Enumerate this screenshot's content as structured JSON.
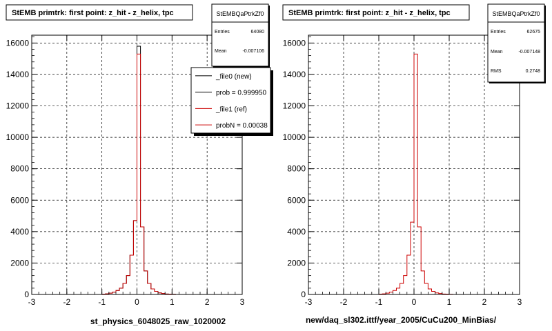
{
  "chart_data": [
    {
      "type": "histogram",
      "title": "StEMB primtrk: first point: z_hit - z_helix, tpc",
      "xlabel": "st_physics_6048025_raw_1020002",
      "xlim": [
        -3,
        3
      ],
      "ylim": [
        0,
        16500
      ],
      "xticks": [
        "-3",
        "-2",
        "-1",
        "0",
        "1",
        "2",
        "3"
      ],
      "yticks": [
        "0",
        "2000",
        "4000",
        "6000",
        "8000",
        "10000",
        "12000",
        "14000",
        "16000"
      ],
      "grid": true,
      "stats": {
        "name": "StEMBQaPtrkZf0",
        "entries_label": "Entries",
        "entries": "64080",
        "mean_label": "Mean",
        "mean": "-0.007106"
      },
      "legend": {
        "position": "top-right",
        "entries": [
          "_file0 (new)",
          "prob = 0.999950",
          "_file1 (ref)",
          "probN = 0.00038"
        ]
      },
      "bin_edges": [
        -3.0,
        -2.9,
        -2.8,
        -2.7,
        -2.6,
        -2.5,
        -2.4,
        -2.3,
        -2.2,
        -2.1,
        -2.0,
        -1.9,
        -1.8,
        -1.7,
        -1.6,
        -1.5,
        -1.4,
        -1.3,
        -1.2,
        -1.1,
        -1.0,
        -0.9,
        -0.8,
        -0.7,
        -0.6,
        -0.5,
        -0.4,
        -0.3,
        -0.2,
        -0.1,
        0.0,
        0.1,
        0.2,
        0.3,
        0.4,
        0.5,
        0.6,
        0.7,
        0.8,
        0.9,
        1.0,
        1.1,
        1.2,
        1.3,
        1.4,
        1.5,
        1.6,
        1.7,
        1.8,
        1.9,
        2.0,
        2.1,
        2.2,
        2.3,
        2.4,
        2.5,
        2.6,
        2.7,
        2.8,
        2.9,
        3.0
      ],
      "series": [
        {
          "color": "#000000",
          "values": [
            0,
            0,
            0,
            0,
            0,
            0,
            0,
            0,
            0,
            0,
            0,
            0,
            0,
            0,
            0,
            0,
            0,
            0,
            0,
            0,
            20,
            40,
            80,
            150,
            250,
            400,
            700,
            1200,
            2500,
            4700,
            15800,
            4300,
            1500,
            700,
            350,
            200,
            100,
            60,
            30,
            20,
            10,
            0,
            0,
            0,
            0,
            0,
            0,
            0,
            0,
            0,
            0,
            0,
            0,
            0,
            0,
            0,
            0,
            0,
            0,
            0
          ]
        },
        {
          "color": "#cc0000",
          "values": [
            0,
            0,
            0,
            0,
            0,
            0,
            0,
            0,
            0,
            0,
            0,
            0,
            0,
            0,
            0,
            0,
            0,
            0,
            0,
            0,
            20,
            40,
            80,
            150,
            250,
            400,
            700,
            1200,
            2500,
            4700,
            15300,
            4300,
            1500,
            700,
            350,
            200,
            100,
            60,
            30,
            20,
            10,
            0,
            0,
            0,
            0,
            0,
            0,
            0,
            0,
            0,
            0,
            0,
            0,
            0,
            0,
            0,
            0,
            0,
            0,
            0
          ]
        }
      ]
    },
    {
      "type": "histogram",
      "title": "StEMB primtrk: first point: z_hit - z_helix, tpc",
      "xlabel": "new/daq_sl302.ittf/year_2005/CuCu200_MinBias/",
      "xlim": [
        -3,
        3
      ],
      "ylim": [
        0,
        16500
      ],
      "xticks": [
        "-3",
        "-2",
        "-1",
        "0",
        "1",
        "2",
        "3"
      ],
      "yticks": [
        "0",
        "2000",
        "4000",
        "6000",
        "8000",
        "10000",
        "12000",
        "14000",
        "16000"
      ],
      "grid": true,
      "stats": {
        "name": "StEMBQaPtrkZf0",
        "entries_label": "Entries",
        "entries": "62675",
        "mean_label": "Mean",
        "mean": "-0.007148",
        "rms_label": "RMS",
        "rms": "0.2748"
      },
      "bin_edges": [
        -3.0,
        -2.9,
        -2.8,
        -2.7,
        -2.6,
        -2.5,
        -2.4,
        -2.3,
        -2.2,
        -2.1,
        -2.0,
        -1.9,
        -1.8,
        -1.7,
        -1.6,
        -1.5,
        -1.4,
        -1.3,
        -1.2,
        -1.1,
        -1.0,
        -0.9,
        -0.8,
        -0.7,
        -0.6,
        -0.5,
        -0.4,
        -0.3,
        -0.2,
        -0.1,
        0.0,
        0.1,
        0.2,
        0.3,
        0.4,
        0.5,
        0.6,
        0.7,
        0.8,
        0.9,
        1.0,
        1.1,
        1.2,
        1.3,
        1.4,
        1.5,
        1.6,
        1.7,
        1.8,
        1.9,
        2.0,
        2.1,
        2.2,
        2.3,
        2.4,
        2.5,
        2.6,
        2.7,
        2.8,
        2.9,
        3.0
      ],
      "series": [
        {
          "color": "#cc0000",
          "values": [
            0,
            0,
            0,
            0,
            0,
            0,
            0,
            0,
            0,
            0,
            0,
            0,
            0,
            0,
            0,
            0,
            0,
            0,
            0,
            0,
            20,
            40,
            80,
            150,
            250,
            400,
            700,
            1200,
            2500,
            4600,
            15300,
            4300,
            1500,
            700,
            350,
            200,
            100,
            60,
            30,
            20,
            10,
            0,
            0,
            0,
            0,
            0,
            0,
            0,
            0,
            0,
            0,
            0,
            0,
            0,
            0,
            0,
            0,
            0,
            0,
            0
          ]
        }
      ]
    }
  ]
}
